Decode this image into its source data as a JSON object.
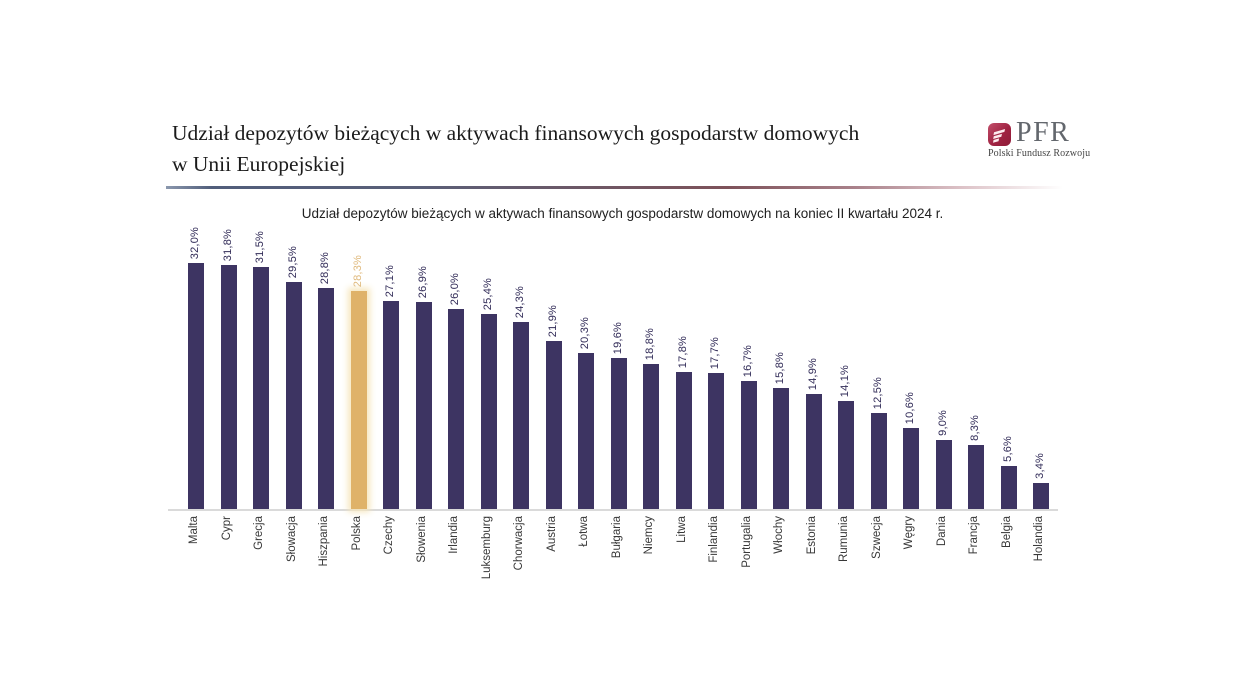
{
  "slide": {
    "title_lines": [
      "Udział depozytów bieżących w aktywach finansowych gospodarstw domowych",
      "w Unii Europejskiej"
    ],
    "logo": {
      "text": "PFR",
      "subtext": "Polski Fundusz Rozwoju",
      "icon": "pfr-stripes-icon",
      "brand_color": "#9e2040",
      "text_color": "#63676d"
    }
  },
  "chart_data": {
    "type": "bar",
    "title": "Udział depozytów bieżących w aktywach finansowych gospodarstw domowych na koniec II kwartału 2024 r.",
    "categories": [
      "Malta",
      "Cypr",
      "Grecja",
      "Słowacja",
      "Hiszpania",
      "Polska",
      "Czechy",
      "Słowenia",
      "Irlandia",
      "Luksemburg",
      "Chorwacja",
      "Austria",
      "Łotwa",
      "Bułgaria",
      "Niemcy",
      "Litwa",
      "Finlandia",
      "Portugalia",
      "Włochy",
      "Estonia",
      "Rumunia",
      "Szwecja",
      "Węgry",
      "Dania",
      "Francja",
      "Belgia",
      "Holandia"
    ],
    "values": [
      32.0,
      31.8,
      31.5,
      29.5,
      28.8,
      28.3,
      27.1,
      26.9,
      26.0,
      25.4,
      24.3,
      21.9,
      20.3,
      19.6,
      18.8,
      17.8,
      17.7,
      16.7,
      15.8,
      14.9,
      14.1,
      12.5,
      10.6,
      9.0,
      8.3,
      5.6,
      3.4
    ],
    "value_labels": [
      "32,0%",
      "31,8%",
      "31,5%",
      "29,5%",
      "28,8%",
      "28,3%",
      "27,1%",
      "26,9%",
      "26,0%",
      "25,4%",
      "24,3%",
      "21,9%",
      "20,3%",
      "19,6%",
      "18,8%",
      "17,8%",
      "17,7%",
      "16,7%",
      "15,8%",
      "14,9%",
      "14,1%",
      "12,5%",
      "10,6%",
      "9,0%",
      "8,3%",
      "5,6%",
      "3,4%"
    ],
    "bar_color": "#3d3462",
    "value_label_color": "#322c58",
    "category_label_color": "#383838",
    "baseline_color": "#dadada",
    "highlight": {
      "category": "Polska",
      "index": 5,
      "bar_color": "#dfb269",
      "label_color": "#e0ba7e",
      "glow_color": "rgba(246,229,186,0.95)"
    },
    "xlabel": "",
    "ylabel": "",
    "ylim": [
      0,
      32
    ],
    "grid": false,
    "legend": false
  }
}
